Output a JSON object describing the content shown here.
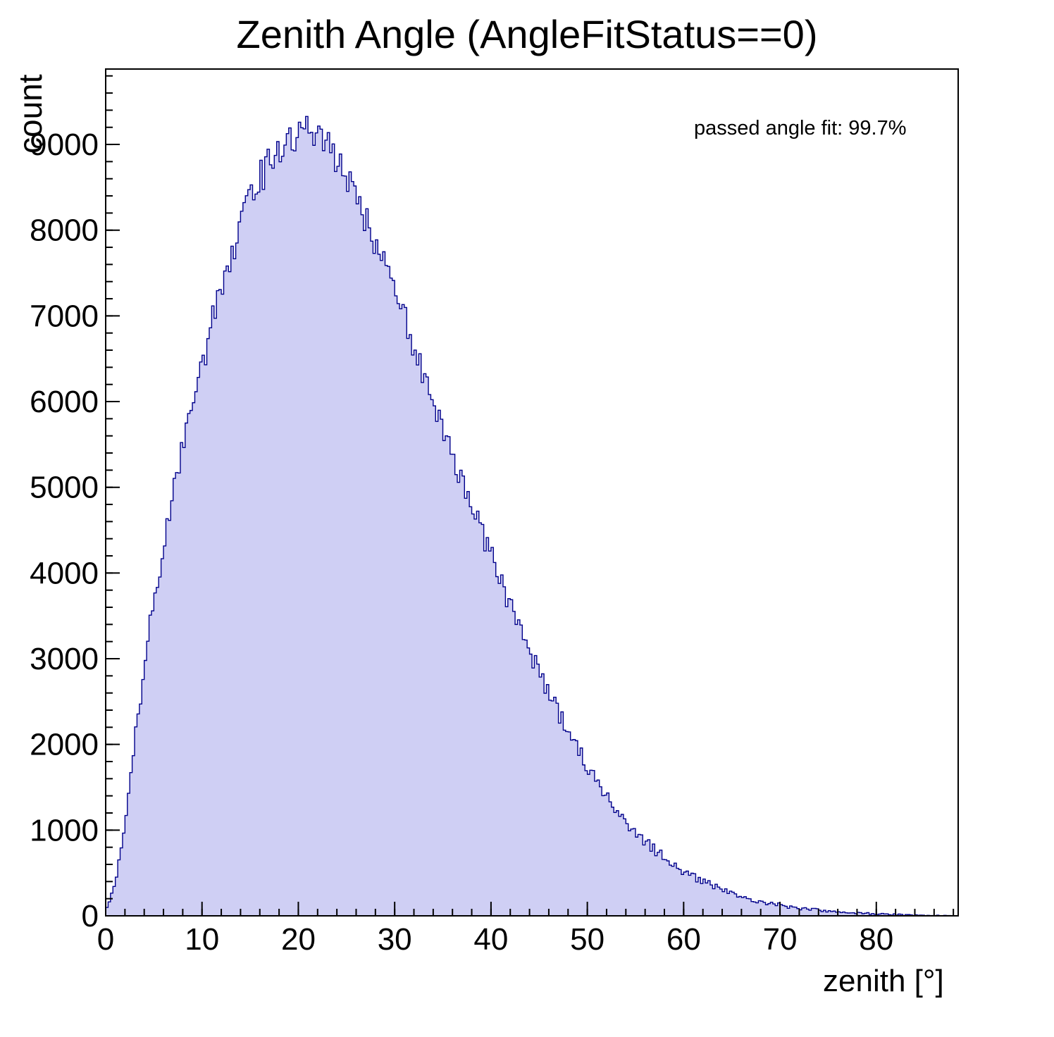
{
  "title": "Zenith Angle (AngleFitStatus==0)",
  "annotation": "passed angle fit: 99.7%",
  "chart_data": {
    "type": "area",
    "subtype": "histogram",
    "title": "Zenith Angle (AngleFitStatus==0)",
    "xlabel": "zenith [°]",
    "ylabel": "count",
    "annotation": "passed angle fit: 99.7%",
    "xlim": [
      0,
      88.5
    ],
    "ylim": [
      0,
      9880
    ],
    "data_xmax": 88,
    "bin_width": 0.25,
    "x_ticks": [
      0,
      10,
      20,
      30,
      40,
      50,
      60,
      70,
      80
    ],
    "y_ticks": [
      0,
      1000,
      2000,
      3000,
      4000,
      5000,
      6000,
      7000,
      8000,
      9000
    ],
    "x_minor_step": 2,
    "y_minor_step": 200,
    "grid": false,
    "legend": "none",
    "fill_color": "#cfcff4",
    "line_color": "#00008b",
    "frame_color": "#000000",
    "control_x_start": 0,
    "control_x_step": 1,
    "control_y": [
      50,
      400,
      1100,
      2000,
      2900,
      3700,
      4300,
      4900,
      5500,
      6000,
      6400,
      6900,
      7300,
      7700,
      8100,
      8400,
      8600,
      8800,
      9000,
      9050,
      9100,
      9150,
      9100,
      9000,
      8800,
      8600,
      8400,
      8100,
      7800,
      7600,
      7300,
      7000,
      6600,
      6300,
      6000,
      5700,
      5400,
      5100,
      4800,
      4500,
      4200,
      3900,
      3600,
      3400,
      3100,
      2850,
      2600,
      2350,
      2150,
      1950,
      1750,
      1550,
      1400,
      1250,
      1100,
      980,
      870,
      770,
      680,
      600,
      520,
      455,
      400,
      350,
      300,
      260,
      225,
      195,
      170,
      145,
      125,
      105,
      90,
      75,
      65,
      55,
      45,
      38,
      32,
      27,
      22,
      18,
      15,
      12,
      9,
      7,
      5,
      3,
      2
    ]
  }
}
